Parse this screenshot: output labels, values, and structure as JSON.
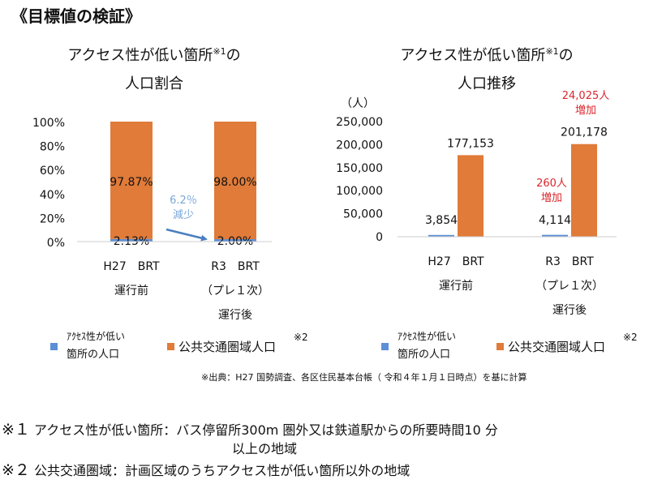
{
  "heading": "《目標値の検証》",
  "chart_data": [
    {
      "type": "bar",
      "title_line1": "アクセス性が低い箇所",
      "title_mark": "※1",
      "title_suffix": "の",
      "title_line2": "人口割合",
      "stacked": true,
      "categories": [
        {
          "line1": "H27　BRT",
          "line2": "運行前",
          "line3": ""
        },
        {
          "line1": "R3　BRT",
          "line2": "（プレ１次）",
          "line3": "運行後"
        }
      ],
      "series": [
        {
          "name": "ｱｸｾｽ性が低い箇所の人口",
          "legend_line1": "ｱｸｾｽ性が低い",
          "legend_line2": "箇所の人口",
          "color": "#5b8fd6",
          "values": [
            2.13,
            2.0
          ],
          "labels": [
            "2.13%",
            "2.00%"
          ]
        },
        {
          "name": "公共交通圏域人口",
          "legend_mark": "※2",
          "color": "#e07b39",
          "values": [
            97.87,
            98.0
          ],
          "labels": [
            "97.87%",
            "98.00%"
          ]
        }
      ],
      "yticks": [
        "0%",
        "20%",
        "40%",
        "60%",
        "80%",
        "100%"
      ],
      "ylim": [
        0,
        100
      ],
      "annotation": {
        "line1": "6.2％",
        "line2": "減少",
        "color": "#7aa7da"
      }
    },
    {
      "type": "bar",
      "title_line1": "アクセス性が低い箇所",
      "title_mark": "※1",
      "title_suffix": "の",
      "title_line2": "人口推移",
      "unit": "（人）",
      "categories": [
        {
          "line1": "H27　BRT",
          "line2": "運行前",
          "line3": ""
        },
        {
          "line1": "R3　BRT",
          "line2": "（プレ１次）",
          "line3": "運行後"
        }
      ],
      "series": [
        {
          "name": "ｱｸｾｽ性が低い箇所の人口",
          "legend_line1": "ｱｸｾｽ性が低い",
          "legend_line2": "箇所の人口",
          "color": "#5b8fd6",
          "values": [
            3854,
            4114
          ],
          "labels": [
            "3,854",
            "4,114"
          ]
        },
        {
          "name": "公共交通圏域人口",
          "legend_mark": "※2",
          "color": "#e07b39",
          "values": [
            177153,
            201178
          ],
          "labels": [
            "177,153",
            "201,178"
          ]
        }
      ],
      "yticks": [
        "0",
        "50,000",
        "100,000",
        "150,000",
        "200,000",
        "250,000"
      ],
      "ylim": [
        0,
        250000
      ],
      "annotations": [
        {
          "line1": "260人",
          "line2": "増加",
          "color": "#d9262b"
        },
        {
          "line1": "24,025人",
          "line2": "増加",
          "color": "#d9262b"
        }
      ]
    }
  ],
  "source_note": "※出典：H27 国勢調査、各区住民基本台帳（ 令和４年１月１日時点）を基に計算",
  "notes": [
    {
      "mark": "※１",
      "text": "アクセス性が低い箇所：バス停留所300m 圏外又は鉄道駅からの所要時間10 分",
      "continuation": "以上の地域"
    },
    {
      "mark": "※２",
      "text": "公共交通圏域：計画区域のうちアクセス性が低い箇所以外の地域",
      "continuation": ""
    }
  ]
}
